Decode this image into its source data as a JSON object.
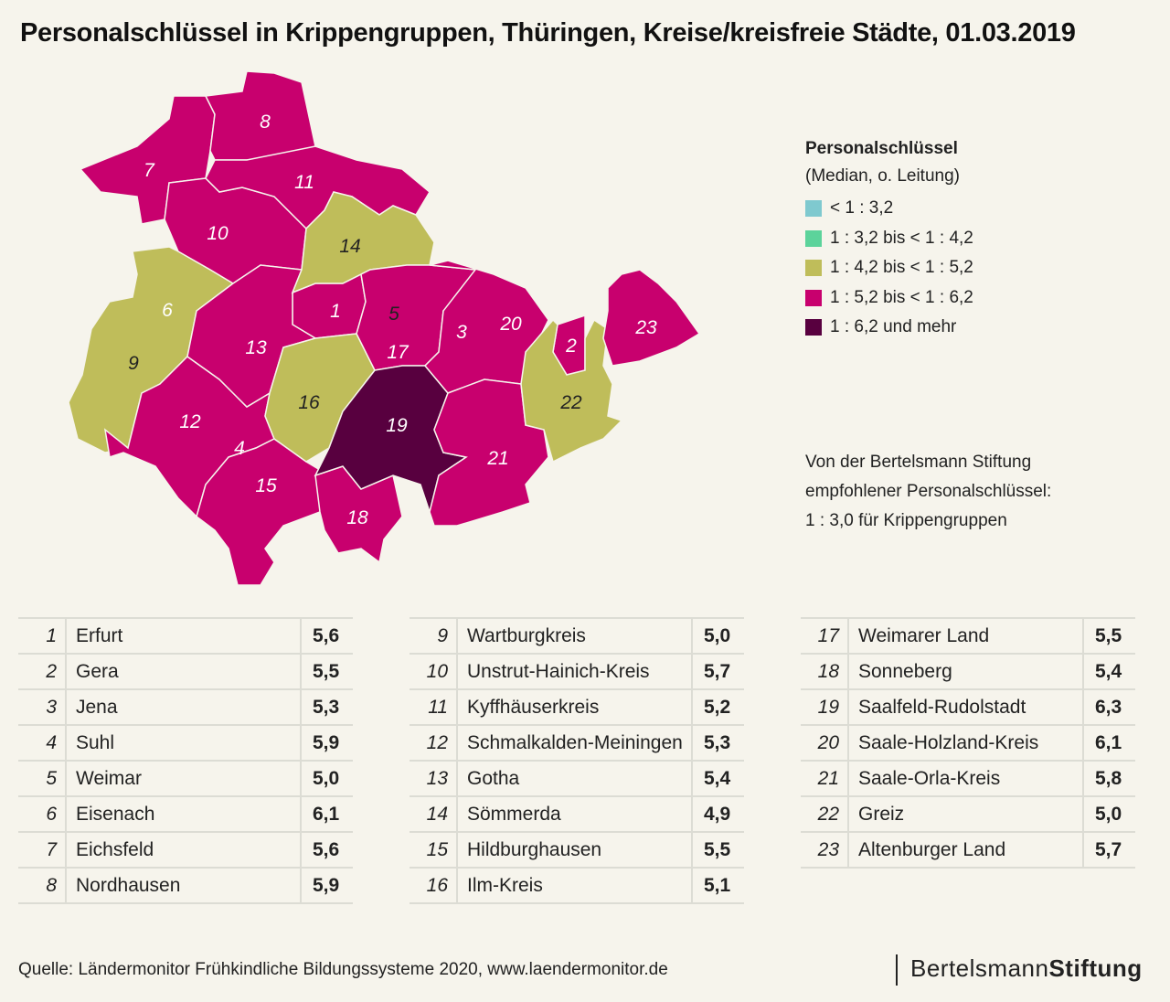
{
  "title": "Personalschlüssel in Krippengruppen, Thüringen, Kreise/kreisfreie Städte, 01.03.2019",
  "legend": {
    "title": "Personalschlüssel",
    "subtitle": "(Median, o. Leitung)",
    "items": [
      {
        "label": "< 1 : 3,2",
        "color": "#7fc9cf"
      },
      {
        "label": "1 : 3,2 bis < 1 : 4,2",
        "color": "#5cd39b"
      },
      {
        "label": "1 : 4,2 bis < 1 : 5,2",
        "color": "#bfbd5a"
      },
      {
        "label": "1 : 5,2 bis < 1 : 6,2",
        "color": "#c8006e"
      },
      {
        "label": "1 : 6,2 und mehr",
        "color": "#58003f"
      }
    ]
  },
  "note": {
    "line1": "Von der Bertelsmann Stiftung",
    "line2": "empfohlener Personalschlüssel:",
    "line3": "1 : 3,0  für Krippengruppen"
  },
  "regions": [
    {
      "n": "1",
      "name": "Erfurt",
      "value": "5,6"
    },
    {
      "n": "2",
      "name": "Gera",
      "value": "5,5"
    },
    {
      "n": "3",
      "name": "Jena",
      "value": "5,3"
    },
    {
      "n": "4",
      "name": "Suhl",
      "value": "5,9"
    },
    {
      "n": "5",
      "name": "Weimar",
      "value": "5,0"
    },
    {
      "n": "6",
      "name": "Eisenach",
      "value": "6,1"
    },
    {
      "n": "7",
      "name": "Eichsfeld",
      "value": "5,6"
    },
    {
      "n": "8",
      "name": "Nordhausen",
      "value": "5,9"
    },
    {
      "n": "9",
      "name": "Wartburgkreis",
      "value": "5,0"
    },
    {
      "n": "10",
      "name": "Unstrut-Hainich-Kreis",
      "value": "5,7"
    },
    {
      "n": "11",
      "name": "Kyffhäuserkreis",
      "value": "5,2"
    },
    {
      "n": "12",
      "name": "Schmalkalden-Meiningen",
      "value": "5,3"
    },
    {
      "n": "13",
      "name": "Gotha",
      "value": "5,4"
    },
    {
      "n": "14",
      "name": "Sömmerda",
      "value": "4,9"
    },
    {
      "n": "15",
      "name": "Hildburghausen",
      "value": "5,5"
    },
    {
      "n": "16",
      "name": "Ilm-Kreis",
      "value": "5,1"
    },
    {
      "n": "17",
      "name": "Weimarer Land",
      "value": "5,5"
    },
    {
      "n": "18",
      "name": "Sonneberg",
      "value": "5,4"
    },
    {
      "n": "19",
      "name": "Saalfeld-Rudolstadt",
      "value": "6,3"
    },
    {
      "n": "20",
      "name": "Saale-Holzland-Kreis",
      "value": "6,1"
    },
    {
      "n": "21",
      "name": "Saale-Orla-Kreis",
      "value": "5,8"
    },
    {
      "n": "22",
      "name": "Greiz",
      "value": "5,0"
    },
    {
      "n": "23",
      "name": "Altenburger Land",
      "value": "5,7"
    }
  ],
  "source": "Quelle: Ländermonitor Frühkindliche Bildungssysteme 2020, www.laendermonitor.de",
  "logo": {
    "part1": "Bertelsmann",
    "part2": "Stiftung"
  }
}
